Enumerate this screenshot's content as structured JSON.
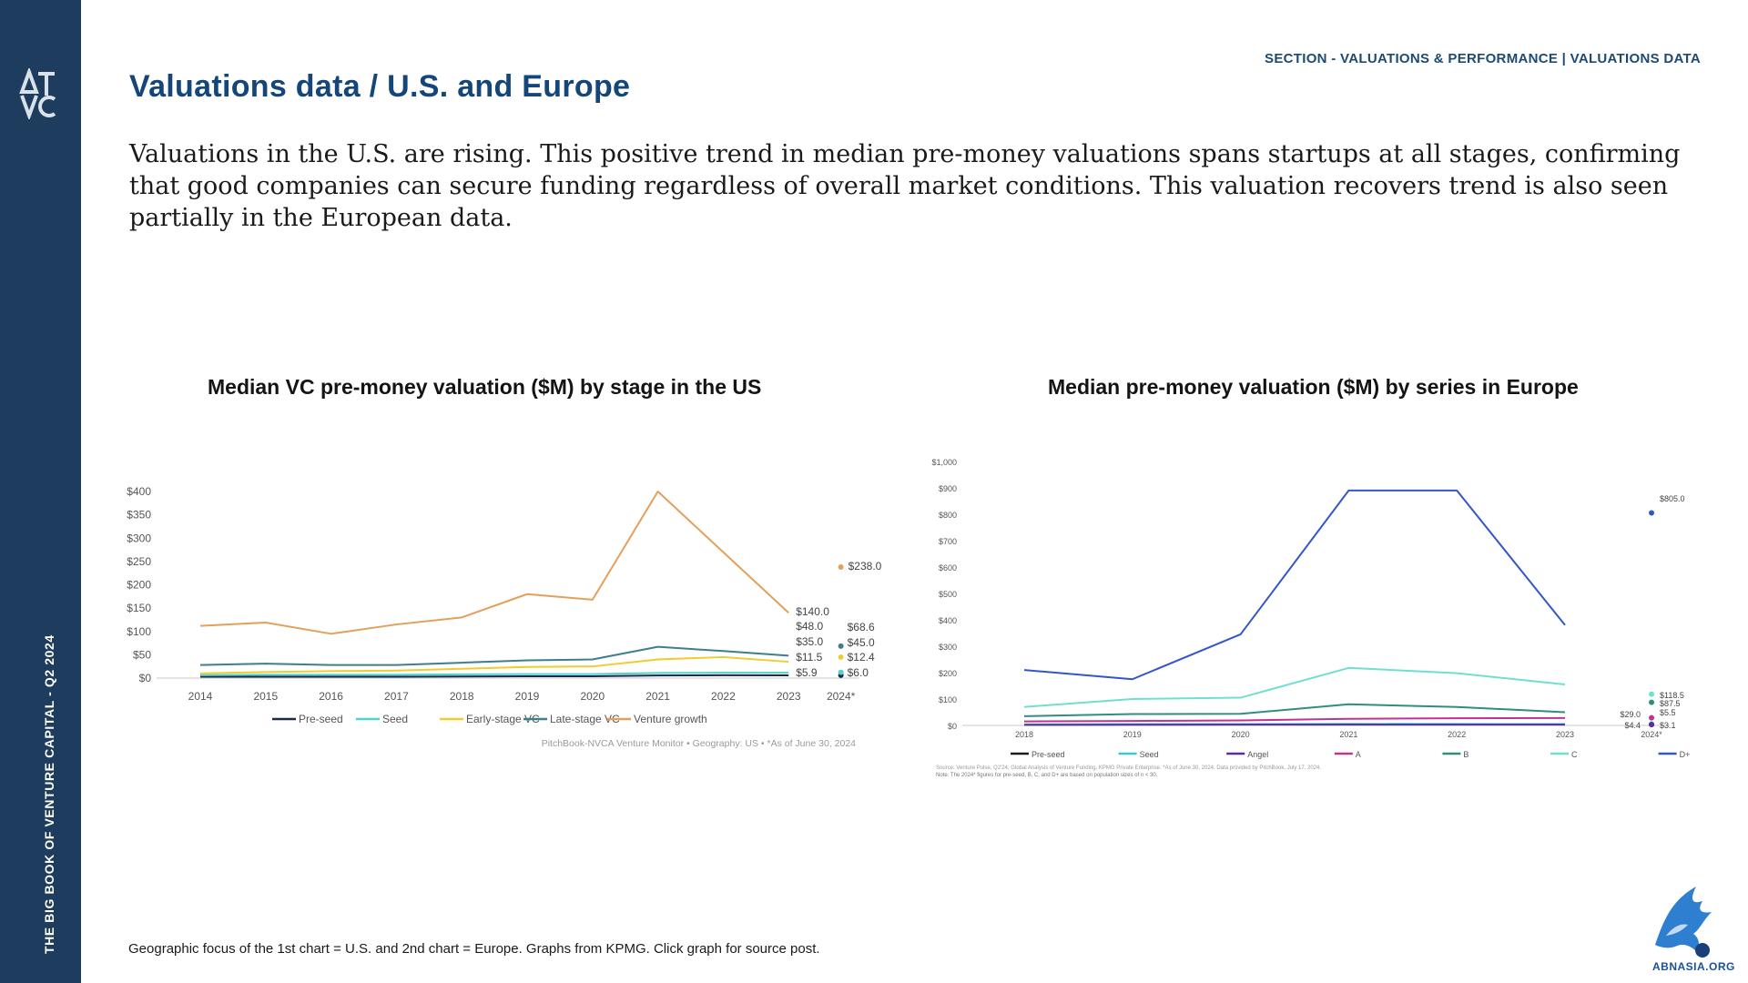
{
  "sidebar": {
    "vertical_title": "THE BIG BOOK OF VENTURE CAPITAL - Q2 2024",
    "bg_color": "#1d3c5e"
  },
  "header": {
    "section_label": "SECTION - VALUATIONS & PERFORMANCE | VALUATIONS DATA",
    "title": "Valuations data / U.S. and Europe",
    "intro": "Valuations in the U.S. are rising. This positive trend in median pre-money valuations spans startups at all stages, confirming that good companies can secure funding regardless of overall market conditions. This valuation recovers trend is also seen partially in the European data."
  },
  "footer": {
    "note": "Geographic focus of the 1st chart = U.S. and 2nd chart = Europe. Graphs from KPMG. Click graph for source post.",
    "watermark": "ABNASIA.ORG"
  },
  "chart_data": [
    {
      "type": "line",
      "title": "Median VC pre-money valuation ($M) by stage in the US",
      "x": [
        "2014",
        "2015",
        "2016",
        "2017",
        "2018",
        "2019",
        "2020",
        "2021",
        "2022",
        "2023"
      ],
      "extra_x_label": "2024*",
      "ylim": [
        0,
        400
      ],
      "yticks": [
        0,
        50,
        100,
        150,
        200,
        250,
        300,
        350,
        400
      ],
      "ytick_labels": [
        "$0",
        "$50",
        "$100",
        "$150",
        "$200",
        "$250",
        "$300",
        "$350",
        "$400"
      ],
      "grid": false,
      "legend": "bottom",
      "source": "PitchBook-NVCA Venture Monitor  •  Geography: US  •  *As of June 30, 2024",
      "series": [
        {
          "name": "Pre-seed",
          "color": "#1b2a4a",
          "values": [
            3,
            3,
            3,
            3,
            3.5,
            4,
            4,
            5.5,
            6,
            5.9
          ],
          "end_label": "$5.9",
          "point_2024": 6.0,
          "label_2024": "$6.0"
        },
        {
          "name": "Seed",
          "color": "#4fd3cf",
          "values": [
            6,
            7,
            7,
            7,
            8,
            8.5,
            8.5,
            11,
            11.5,
            11.5
          ],
          "end_label": "$11.5",
          "point_2024": 12.4,
          "label_2024": "$12.4"
        },
        {
          "name": "Early-stage VC",
          "color": "#f2cb2e",
          "values": [
            10,
            13,
            15,
            16,
            20,
            24,
            25,
            40,
            45,
            35
          ],
          "end_label": "$35.0",
          "point_2024": 45.0,
          "label_2024": "$45.0"
        },
        {
          "name": "Late-stage VC",
          "color": "#3e7f8b",
          "values": [
            28,
            31,
            28,
            28,
            33,
            38,
            40,
            67,
            58,
            48
          ],
          "end_label": "$48.0",
          "point_2024": 68.6,
          "label_2024": "$68.6"
        },
        {
          "name": "Venture growth",
          "color": "#e3a05a",
          "values": [
            112,
            119,
            95,
            115,
            130,
            180,
            168,
            400,
            270,
            140
          ],
          "end_label": "$140.0",
          "point_2024": 238.0,
          "label_2024": "$238.0"
        }
      ]
    },
    {
      "type": "line",
      "title": "Median pre-money valuation ($M) by series in Europe",
      "x": [
        "2018",
        "2019",
        "2020",
        "2021",
        "2022",
        "2023"
      ],
      "extra_x_label": "2024*",
      "ylim": [
        0,
        1000
      ],
      "yticks": [
        0,
        100,
        200,
        300,
        400,
        500,
        600,
        700,
        800,
        900,
        1000
      ],
      "ytick_labels": [
        "$0",
        "$100",
        "$200",
        "$300",
        "$400",
        "$500",
        "$600",
        "$700",
        "$800",
        "$900",
        "$1,000"
      ],
      "grid": false,
      "legend": "bottom",
      "source": "Source: Venture Pulse, Q2'24, Global Analysis of Venture Funding, KPMG Private Enterprise. *As of June 30, 2024. Data provided by PitchBook, July 17, 2024.",
      "note": "Note: The 2024* figures for pre-seed, B, C, and D+ are based on population sizes of n < 30.",
      "series": [
        {
          "name": "Pre-seed",
          "color": "#1b1b1b",
          "values": [
            3,
            3.5,
            4,
            5,
            4.5,
            4.4
          ],
          "point_2024": 4.4,
          "label_2024": "$4.4"
        },
        {
          "name": "Seed",
          "color": "#3ec7d6",
          "values": [
            4,
            5,
            5,
            6,
            5.5,
            5
          ],
          "point_2024": 5.5,
          "label_2024": "$5.5"
        },
        {
          "name": "Angel",
          "color": "#5a2ca0",
          "values": [
            2,
            2.5,
            3,
            3,
            3,
            3
          ],
          "point_2024": 3.1,
          "label_2024": "$3.1"
        },
        {
          "name": "A",
          "color": "#c0338f",
          "values": [
            15,
            17,
            19,
            25,
            27,
            28
          ],
          "point_2024": 29.0,
          "label_2024": "$29.0"
        },
        {
          "name": "B",
          "color": "#2f8f7e",
          "values": [
            35,
            43,
            44,
            80,
            70,
            50
          ],
          "point_2024": 87.5,
          "label_2024": "$87.5"
        },
        {
          "name": "C",
          "color": "#6fe0cf",
          "values": [
            70,
            100,
            105,
            218,
            198,
            155
          ],
          "point_2024": 118.5,
          "label_2024": "$118.5"
        },
        {
          "name": "D+",
          "color": "#3456c9",
          "values": [
            210,
            175,
            345,
            890,
            890,
            380
          ],
          "point_2024": 805.0,
          "label_2024": "$805.0"
        }
      ]
    }
  ]
}
